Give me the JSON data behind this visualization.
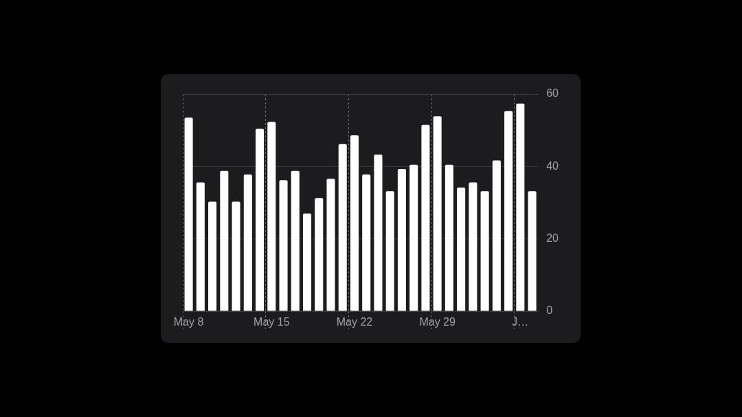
{
  "chart_data": {
    "type": "bar",
    "categories": [
      "May 8",
      null,
      null,
      null,
      null,
      null,
      null,
      "May 15",
      null,
      null,
      null,
      null,
      null,
      null,
      "May 22",
      null,
      null,
      null,
      null,
      null,
      null,
      "May 29",
      null,
      null,
      null,
      null,
      null,
      null,
      "J…",
      null
    ],
    "values": [
      53.5,
      35.6,
      30.3,
      38.8,
      30.3,
      37.8,
      50.4,
      52.3,
      36.2,
      38.8,
      27.0,
      31.3,
      36.6,
      46.2,
      48.6,
      37.8,
      43.3,
      33.2,
      39.3,
      40.5,
      51.5,
      53.9,
      40.5,
      34.2,
      35.6,
      33.2,
      41.7,
      55.3,
      57.4,
      33.2
    ],
    "color": "#ffffff",
    "ylim": [
      0,
      60
    ],
    "yticks": [
      0,
      20,
      40,
      60
    ],
    "grid": true
  }
}
